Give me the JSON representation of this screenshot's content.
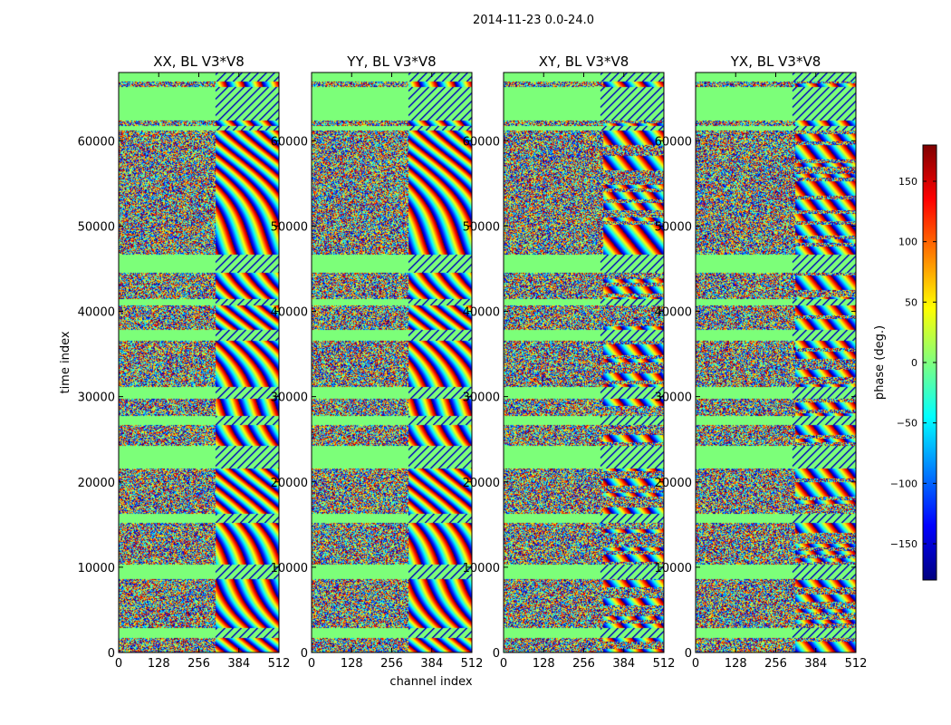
{
  "figure": {
    "suptitle": "2014-11-23 0.0-24.0"
  },
  "chart_data": {
    "type": "heatmap",
    "title": "2014-11-23 0.0-24.0",
    "xlabel": "channel index",
    "ylabel": "time index",
    "xlim": [
      0,
      512
    ],
    "ylim": [
      0,
      68000
    ],
    "xticks": [
      0,
      128,
      256,
      384,
      512
    ],
    "yticks": [
      0,
      10000,
      20000,
      30000,
      40000,
      50000,
      60000
    ],
    "panels": [
      {
        "title": "XX, BL V3*V8",
        "pol": "XX"
      },
      {
        "title": "YY, BL V3*V8",
        "pol": "YY"
      },
      {
        "title": "XY, BL V3*V8",
        "pol": "XY"
      },
      {
        "title": "YX, BL V3*V8",
        "pol": "YX"
      }
    ],
    "colorbar": {
      "label": "phase (deg.)",
      "colormap": "jet",
      "range": [
        -180,
        180
      ],
      "ticks": [
        -150,
        -100,
        -50,
        0,
        50,
        100,
        150
      ]
    },
    "flagged_time_bands": [
      [
        1800,
        2900
      ],
      [
        8700,
        10400
      ],
      [
        15300,
        16300
      ],
      [
        21600,
        24300
      ],
      [
        26700,
        27800
      ],
      [
        29800,
        31200
      ],
      [
        36600,
        37900
      ],
      [
        40800,
        41500
      ],
      [
        44600,
        46700
      ],
      [
        61300,
        61800
      ],
      [
        62400,
        66300
      ],
      [
        67000,
        68000
      ]
    ],
    "colors": {
      "flag_green": "#7cff79",
      "jet_stops": [
        "#00007f",
        "#0000ff",
        "#007fff",
        "#00ffff",
        "#7fff7f",
        "#ffff00",
        "#ff7f00",
        "#ff0000",
        "#7f0000"
      ]
    }
  }
}
